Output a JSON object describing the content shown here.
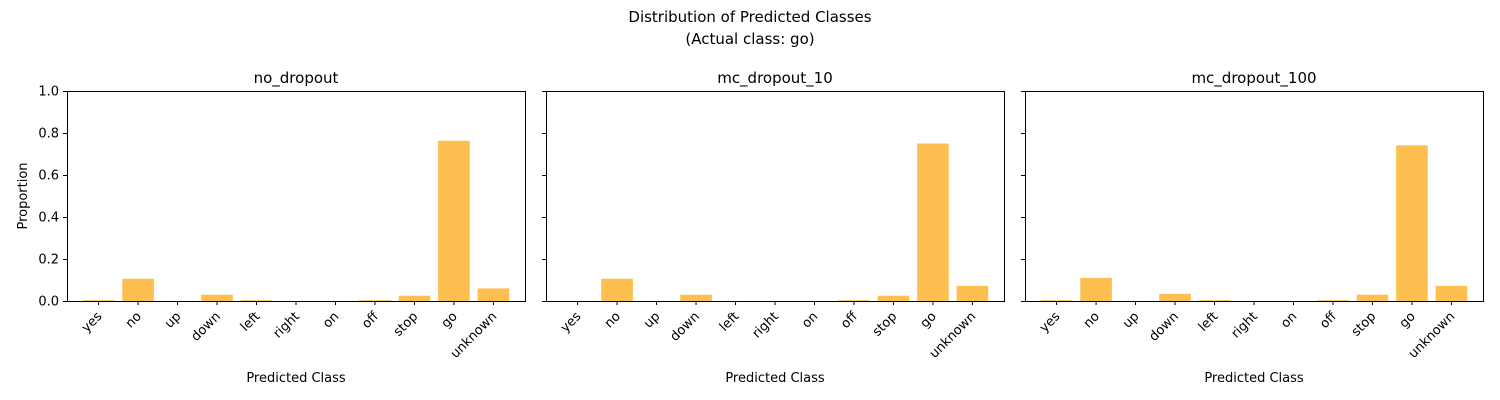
{
  "figure": {
    "suptitle_line1": "Distribution of Predicted Classes",
    "suptitle_line2": "(Actual class: go)",
    "bar_color": "#fdbf4f"
  },
  "chart_data": [
    {
      "type": "bar",
      "title": "no_dropout",
      "xlabel": "Predicted Class",
      "ylabel": "Proportion",
      "ylim": [
        0,
        1
      ],
      "yticks": [
        0.0,
        0.2,
        0.4,
        0.6,
        0.8,
        1.0
      ],
      "categories": [
        "yes",
        "no",
        "up",
        "down",
        "left",
        "right",
        "on",
        "off",
        "stop",
        "go",
        "unknown"
      ],
      "values": [
        0.004,
        0.106,
        0.0,
        0.03,
        0.004,
        0.0,
        0.0,
        0.004,
        0.025,
        0.763,
        0.06
      ]
    },
    {
      "type": "bar",
      "title": "mc_dropout_10",
      "xlabel": "Predicted Class",
      "ylabel": "",
      "ylim": [
        0,
        1
      ],
      "yticks": [
        0.0,
        0.2,
        0.4,
        0.6,
        0.8,
        1.0
      ],
      "categories": [
        "yes",
        "no",
        "up",
        "down",
        "left",
        "right",
        "on",
        "off",
        "stop",
        "go",
        "unknown"
      ],
      "values": [
        0.0,
        0.106,
        0.0,
        0.03,
        0.0,
        0.0,
        0.0,
        0.004,
        0.025,
        0.75,
        0.072
      ]
    },
    {
      "type": "bar",
      "title": "mc_dropout_100",
      "xlabel": "Predicted Class",
      "ylabel": "",
      "ylim": [
        0,
        1
      ],
      "yticks": [
        0.0,
        0.2,
        0.4,
        0.6,
        0.8,
        1.0
      ],
      "categories": [
        "yes",
        "no",
        "up",
        "down",
        "left",
        "right",
        "on",
        "off",
        "stop",
        "go",
        "unknown"
      ],
      "values": [
        0.004,
        0.11,
        0.0,
        0.034,
        0.004,
        0.0,
        0.0,
        0.004,
        0.03,
        0.741,
        0.072
      ]
    }
  ]
}
